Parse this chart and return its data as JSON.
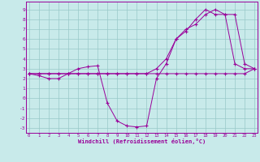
{
  "xlabel": "Windchill (Refroidissement éolien,°C)",
  "bg_color": "#c8eaea",
  "grid_color": "#98c8c8",
  "line_color": "#990099",
  "xlim": [
    -0.3,
    23.3
  ],
  "ylim": [
    -3.5,
    9.8
  ],
  "xticks": [
    0,
    1,
    2,
    3,
    4,
    5,
    6,
    7,
    8,
    9,
    10,
    11,
    12,
    13,
    14,
    15,
    16,
    17,
    18,
    19,
    20,
    21,
    22,
    23
  ],
  "yticks": [
    -3,
    -2,
    -1,
    0,
    1,
    2,
    3,
    4,
    5,
    6,
    7,
    8,
    9
  ],
  "line1_x": [
    0,
    1,
    2,
    3,
    4,
    5,
    6,
    7,
    8,
    9,
    10,
    11,
    12,
    13,
    14,
    15,
    16,
    17,
    18,
    19,
    20,
    21,
    22,
    23
  ],
  "line1_y": [
    2.5,
    2.5,
    2.5,
    2.5,
    2.5,
    2.5,
    2.5,
    2.5,
    2.5,
    2.5,
    2.5,
    2.5,
    2.5,
    2.5,
    2.5,
    2.5,
    2.5,
    2.5,
    2.5,
    2.5,
    2.5,
    2.5,
    2.5,
    3.0
  ],
  "line2_x": [
    0,
    1,
    2,
    3,
    4,
    5,
    6,
    7,
    8,
    9,
    10,
    11,
    12,
    13,
    14,
    15,
    16,
    17,
    18,
    19,
    20,
    21,
    22,
    23
  ],
  "line2_y": [
    2.5,
    2.5,
    2.5,
    2.5,
    2.5,
    2.5,
    2.5,
    2.5,
    2.5,
    2.5,
    2.5,
    2.5,
    2.5,
    3.0,
    4.0,
    6.0,
    7.0,
    7.5,
    8.5,
    9.0,
    8.5,
    8.5,
    3.5,
    3.0
  ],
  "line3_x": [
    0,
    1,
    2,
    3,
    4,
    5,
    6,
    7,
    8,
    9,
    10,
    11,
    12,
    13,
    14,
    15,
    16,
    17,
    18,
    19,
    20,
    21,
    22,
    23
  ],
  "line3_y": [
    2.5,
    2.3,
    2.0,
    2.0,
    2.5,
    3.0,
    3.2,
    3.3,
    -0.5,
    -2.3,
    -2.8,
    -2.9,
    -2.8,
    2.0,
    3.5,
    6.0,
    6.8,
    8.0,
    9.0,
    8.5,
    8.5,
    3.5,
    3.0,
    3.0
  ]
}
